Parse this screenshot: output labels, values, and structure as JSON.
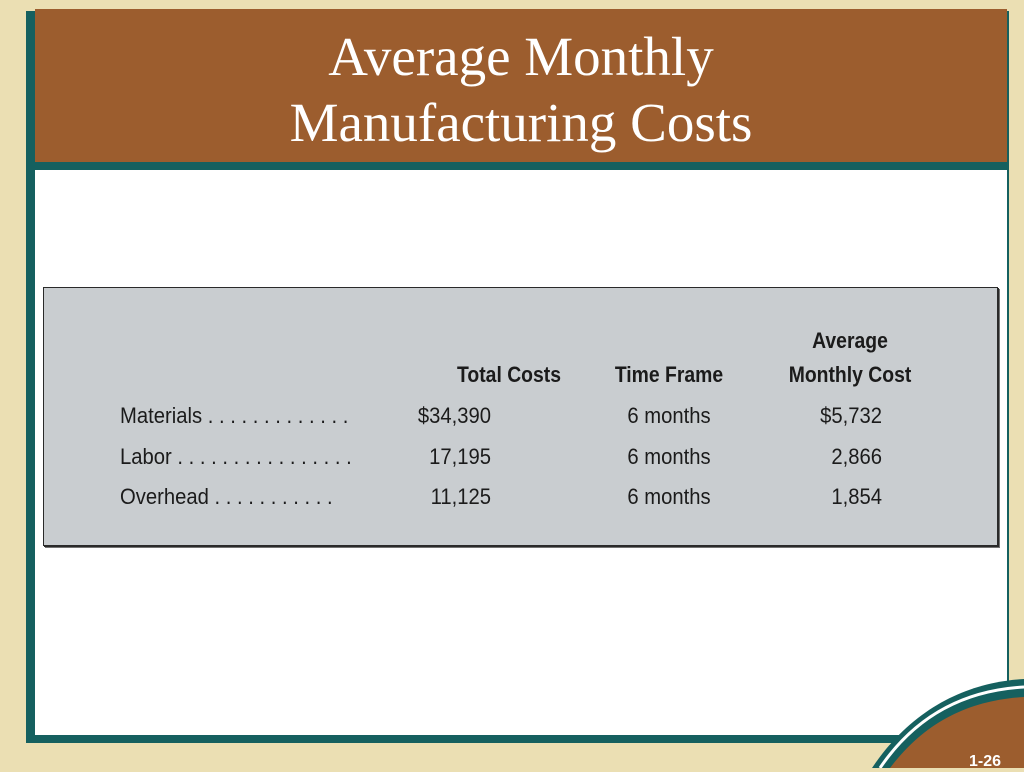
{
  "slide": {
    "title_line1": "Average Monthly",
    "title_line2": "Manufacturing Costs",
    "slide_number": "1-26"
  },
  "table": {
    "headers": {
      "total_costs": "Total Costs",
      "time_frame": "Time Frame",
      "average_monthly_cost_line1": "Average",
      "average_monthly_cost_line2": "Monthly Cost"
    },
    "rows": [
      {
        "label": "Materials . . . . . . . . . . . . .",
        "total": "$34,390",
        "time_frame": "6 months",
        "monthly": "$5,732"
      },
      {
        "label": "Labor . . . . . . . . . . . . . . . .",
        "total": "17,195",
        "time_frame": "6 months",
        "monthly": "2,866"
      },
      {
        "label": "Overhead  . . . . . . . . . . .",
        "total": "11,125",
        "time_frame": "6 months",
        "monthly": "1,854"
      }
    ]
  },
  "colors": {
    "background": "#ebdfb3",
    "title_band": "#9c5d2e",
    "frame_teal": "#15605f",
    "table_fill": "#c9cdd0"
  }
}
